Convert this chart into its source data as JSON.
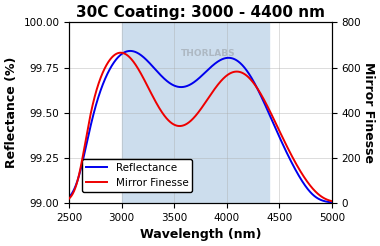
{
  "title": "30C Coating: 3000 - 4400 nm",
  "xlabel": "Wavelength (nm)",
  "ylabel_left": "Reflectance (%)",
  "ylabel_right": "Mirror Finesse",
  "xlim": [
    2500,
    5000
  ],
  "ylim_left": [
    99.0,
    100.0
  ],
  "ylim_right": [
    0,
    800
  ],
  "yticks_left": [
    99.0,
    99.25,
    99.5,
    99.75,
    100.0
  ],
  "yticks_right": [
    0,
    200,
    400,
    600,
    800
  ],
  "xticks": [
    2500,
    3000,
    3500,
    4000,
    4500,
    5000
  ],
  "shaded_region": [
    3000,
    4400
  ],
  "shaded_color": "#ccdded",
  "blue_color": "#0000ee",
  "red_color": "#ee0000",
  "watermark": "THORLABS",
  "watermark_color": "#aab4be",
  "legend_entries": [
    "Reflectance",
    "Mirror Finesse"
  ],
  "title_fontsize": 11,
  "axis_label_fontsize": 9,
  "tick_fontsize": 7.5,
  "legend_fontsize": 7.5,
  "background_color": "#ffffff"
}
